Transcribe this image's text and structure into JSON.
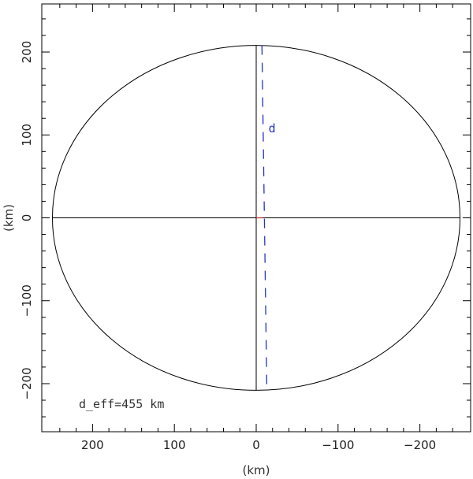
{
  "chart_data": {
    "type": "scatter",
    "xlabel": "(km)",
    "ylabel": "(km)",
    "xlim": [
      262,
      -262
    ],
    "ylim": [
      -258,
      258
    ],
    "x_reversed": true,
    "x_ticks": [
      200,
      100,
      0,
      -100,
      -200
    ],
    "y_ticks": [
      200,
      100,
      0,
      -100,
      -200
    ],
    "x_tick_labels": [
      "200",
      "100",
      "0",
      "−100",
      "−200"
    ],
    "y_tick_labels": [
      "200",
      "100",
      "0",
      "−100",
      "−200"
    ],
    "ellipse": {
      "center": [
        0,
        0
      ],
      "semi_major_x": 249,
      "semi_minor_y": 208
    },
    "axes_lines": [
      {
        "name": "major-axis",
        "x": [
          249,
          -249
        ],
        "y": [
          0,
          0
        ]
      },
      {
        "name": "minor-axis",
        "x": [
          0,
          0
        ],
        "y": [
          208,
          -208
        ]
      }
    ],
    "chord": {
      "name": "d",
      "x": [
        -7,
        -13
      ],
      "y": [
        208,
        -208
      ],
      "color": "#2233cc",
      "style": "dashed"
    },
    "center_offset": {
      "x": [
        0,
        -8
      ],
      "y": [
        0,
        0
      ],
      "color": "#cc2222"
    },
    "chord_label": "d",
    "annotation": "d_eff=455 km",
    "colors": {
      "frame": "#000000",
      "chord": "#2233cc",
      "offset": "#cc2222"
    }
  }
}
